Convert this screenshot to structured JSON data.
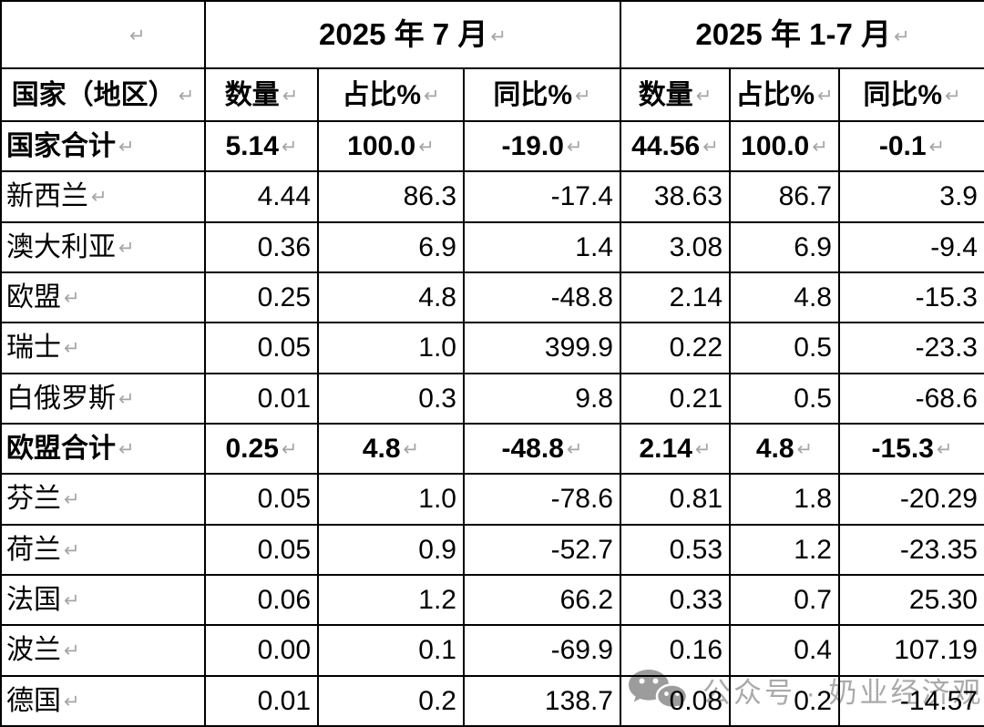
{
  "marks": {
    "return_mark": "↵"
  },
  "table": {
    "period_headers": [
      {
        "label": "2025 年 7 月"
      },
      {
        "label": "2025 年 1-7 月"
      }
    ],
    "country_header": "国家（地区）",
    "metric_headers": [
      "数量",
      "占比%",
      "同比%",
      "数量",
      "占比%",
      "同比%"
    ],
    "rows": [
      {
        "name": "国家合计",
        "bold": true,
        "values": [
          "5.14",
          "100.0",
          "-19.0",
          "44.56",
          "100.0",
          "-0.1"
        ]
      },
      {
        "name": "新西兰",
        "bold": false,
        "values": [
          "4.44",
          "86.3",
          "-17.4",
          "38.63",
          "86.7",
          "3.9"
        ]
      },
      {
        "name": "澳大利亚",
        "bold": false,
        "values": [
          "0.36",
          "6.9",
          "1.4",
          "3.08",
          "6.9",
          "-9.4"
        ]
      },
      {
        "name": "欧盟",
        "bold": false,
        "values": [
          "0.25",
          "4.8",
          "-48.8",
          "2.14",
          "4.8",
          "-15.3"
        ]
      },
      {
        "name": "瑞士",
        "bold": false,
        "values": [
          "0.05",
          "1.0",
          "399.9",
          "0.22",
          "0.5",
          "-23.3"
        ]
      },
      {
        "name": "白俄罗斯",
        "bold": false,
        "values": [
          "0.01",
          "0.3",
          "9.8",
          "0.21",
          "0.5",
          "-68.6"
        ]
      },
      {
        "name": "欧盟合计",
        "bold": true,
        "values": [
          "0.25",
          "4.8",
          "-48.8",
          "2.14",
          "4.8",
          "-15.3"
        ]
      },
      {
        "name": "芬兰",
        "bold": false,
        "values": [
          "0.05",
          "1.0",
          "-78.6",
          "0.81",
          "1.8",
          "-20.29"
        ]
      },
      {
        "name": "荷兰",
        "bold": false,
        "values": [
          "0.05",
          "0.9",
          "-52.7",
          "0.53",
          "1.2",
          "-23.35"
        ]
      },
      {
        "name": "法国",
        "bold": false,
        "values": [
          "0.06",
          "1.2",
          "66.2",
          "0.33",
          "0.7",
          "25.30"
        ]
      },
      {
        "name": "波兰",
        "bold": false,
        "values": [
          "0.00",
          "0.1",
          "-69.9",
          "0.16",
          "0.4",
          "107.19"
        ]
      },
      {
        "name": "德国",
        "bold": false,
        "values": [
          "0.01",
          "0.2",
          "138.7",
          "0.08",
          "0.2",
          "-14.57"
        ]
      }
    ]
  },
  "watermark": {
    "text": "公众号 · 奶业经济观察",
    "text_color": "#aaaaaa",
    "icon_color": "#9c9c9c"
  }
}
